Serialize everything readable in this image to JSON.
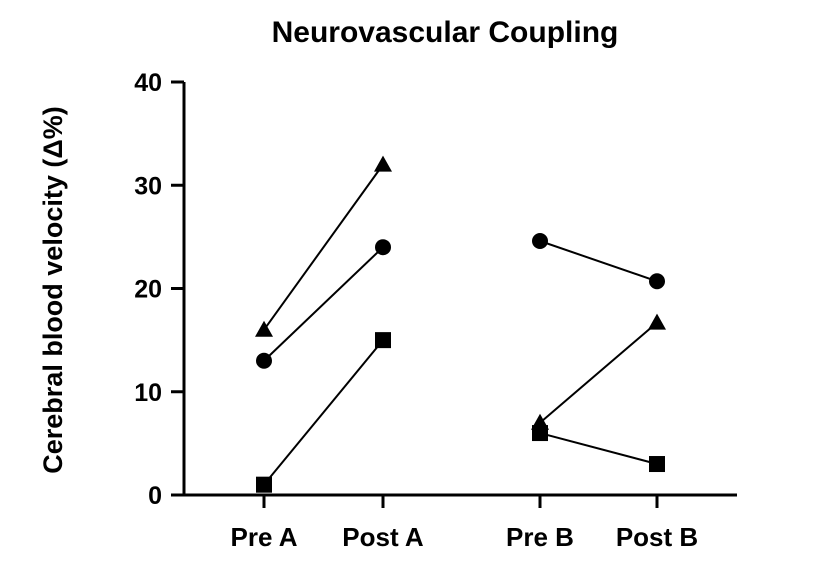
{
  "chart_data": {
    "type": "scatter",
    "title": "Neurovascular Coupling",
    "xlabel": "",
    "ylabel": "Cerebral blood velocity (Δ%)",
    "ylim": [
      0,
      40
    ],
    "yticks": [
      0,
      10,
      20,
      30,
      40
    ],
    "categories": [
      "Pre A",
      "Post A",
      "Pre B",
      "Post B"
    ],
    "grid": false,
    "legend": "none",
    "color": "#000000",
    "series": [
      {
        "marker": "triangle",
        "pairs": [
          {
            "x": [
              "Pre A",
              "Post A"
            ],
            "y": [
              16,
              32
            ]
          },
          {
            "x": [
              "Pre B",
              "Post B"
            ],
            "y": [
              7,
              16.7
            ]
          }
        ]
      },
      {
        "marker": "circle",
        "pairs": [
          {
            "x": [
              "Pre A",
              "Post A"
            ],
            "y": [
              13,
              24
            ]
          },
          {
            "x": [
              "Pre B",
              "Post B"
            ],
            "y": [
              24.6,
              20.7
            ]
          }
        ]
      },
      {
        "marker": "square",
        "pairs": [
          {
            "x": [
              "Pre A",
              "Post A"
            ],
            "y": [
              1,
              15
            ]
          },
          {
            "x": [
              "Pre B",
              "Post B"
            ],
            "y": [
              6,
              3
            ]
          }
        ]
      }
    ]
  }
}
